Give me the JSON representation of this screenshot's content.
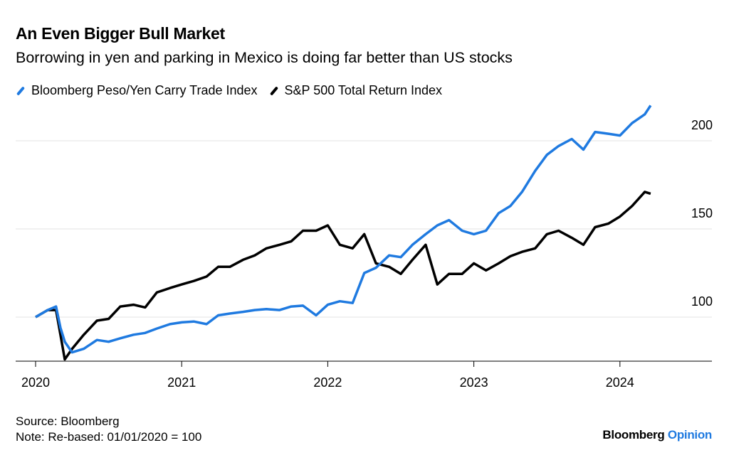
{
  "chart_data": {
    "type": "line",
    "title": "An Even Bigger Bull Market",
    "subtitle": "Borrowing in yen and parking in Mexico is doing far better than US stocks",
    "xlabel": "",
    "ylabel": "",
    "xlim": [
      2020.0,
      2024.85
    ],
    "ylim": [
      75,
      222
    ],
    "x_ticks": [
      2020,
      2021,
      2022,
      2023,
      2024
    ],
    "x_tick_labels": [
      "2020",
      "2021",
      "2022",
      "2023",
      "2024"
    ],
    "y_ticks": [
      100,
      150,
      200
    ],
    "y_tick_labels": [
      "100",
      "150",
      "200"
    ],
    "grid": "horizontal",
    "legend_position": "top-left",
    "x": [
      2020.0,
      2020.083,
      2020.14,
      2020.17,
      2020.2,
      2020.25,
      2020.33,
      2020.42,
      2020.5,
      2020.58,
      2020.67,
      2020.75,
      2020.83,
      2020.92,
      2021.0,
      2021.083,
      2021.17,
      2021.25,
      2021.33,
      2021.42,
      2021.5,
      2021.58,
      2021.67,
      2021.75,
      2021.83,
      2021.92,
      2022.0,
      2022.083,
      2022.17,
      2022.25,
      2022.33,
      2022.42,
      2022.5,
      2022.58,
      2022.67,
      2022.75,
      2022.83,
      2022.92,
      2023.0,
      2023.083,
      2023.17,
      2023.25,
      2023.33,
      2023.42,
      2023.5,
      2023.58,
      2023.67,
      2023.75,
      2023.83,
      2023.92,
      2024.0,
      2024.083,
      2024.17,
      2024.21
    ],
    "series": [
      {
        "name": "Bloomberg Peso/Yen Carry Trade Index",
        "color": "#1f7ae0",
        "values": [
          100,
          104,
          106,
          94,
          86,
          80,
          82,
          87,
          86,
          88,
          90,
          91,
          93.5,
          96,
          97,
          97.5,
          96,
          101,
          102,
          103,
          104,
          104.5,
          104,
          106,
          106.5,
          101,
          107,
          109,
          108,
          125,
          128,
          135,
          134,
          141,
          147,
          152,
          155,
          149,
          147,
          149,
          159,
          163,
          171,
          183,
          192,
          197,
          201,
          195,
          205,
          204,
          203,
          210,
          215,
          220
        ]
      },
      {
        "name": "S&P 500 Total Return Index",
        "color": "#000000",
        "values": [
          100,
          104,
          104,
          90,
          76,
          82,
          90,
          98,
          99,
          106,
          107,
          105.5,
          114,
          116.5,
          118.5,
          120.5,
          123,
          128.5,
          128.5,
          132.5,
          135,
          139,
          141,
          143,
          149,
          149,
          152,
          141,
          139,
          147,
          130.5,
          128.5,
          124.5,
          132.5,
          141,
          118.5,
          124.5,
          124.5,
          130.5,
          126.5,
          130.5,
          134.5,
          137,
          139,
          147,
          149,
          145,
          141,
          151,
          153,
          157,
          163,
          171,
          170
        ]
      }
    ]
  },
  "footer": {
    "source": "Source: Bloomberg",
    "note": "Note: Re-based: 01/01/2020 = 100",
    "logo_main": "Bloomberg",
    "logo_accent": "Opinion"
  }
}
